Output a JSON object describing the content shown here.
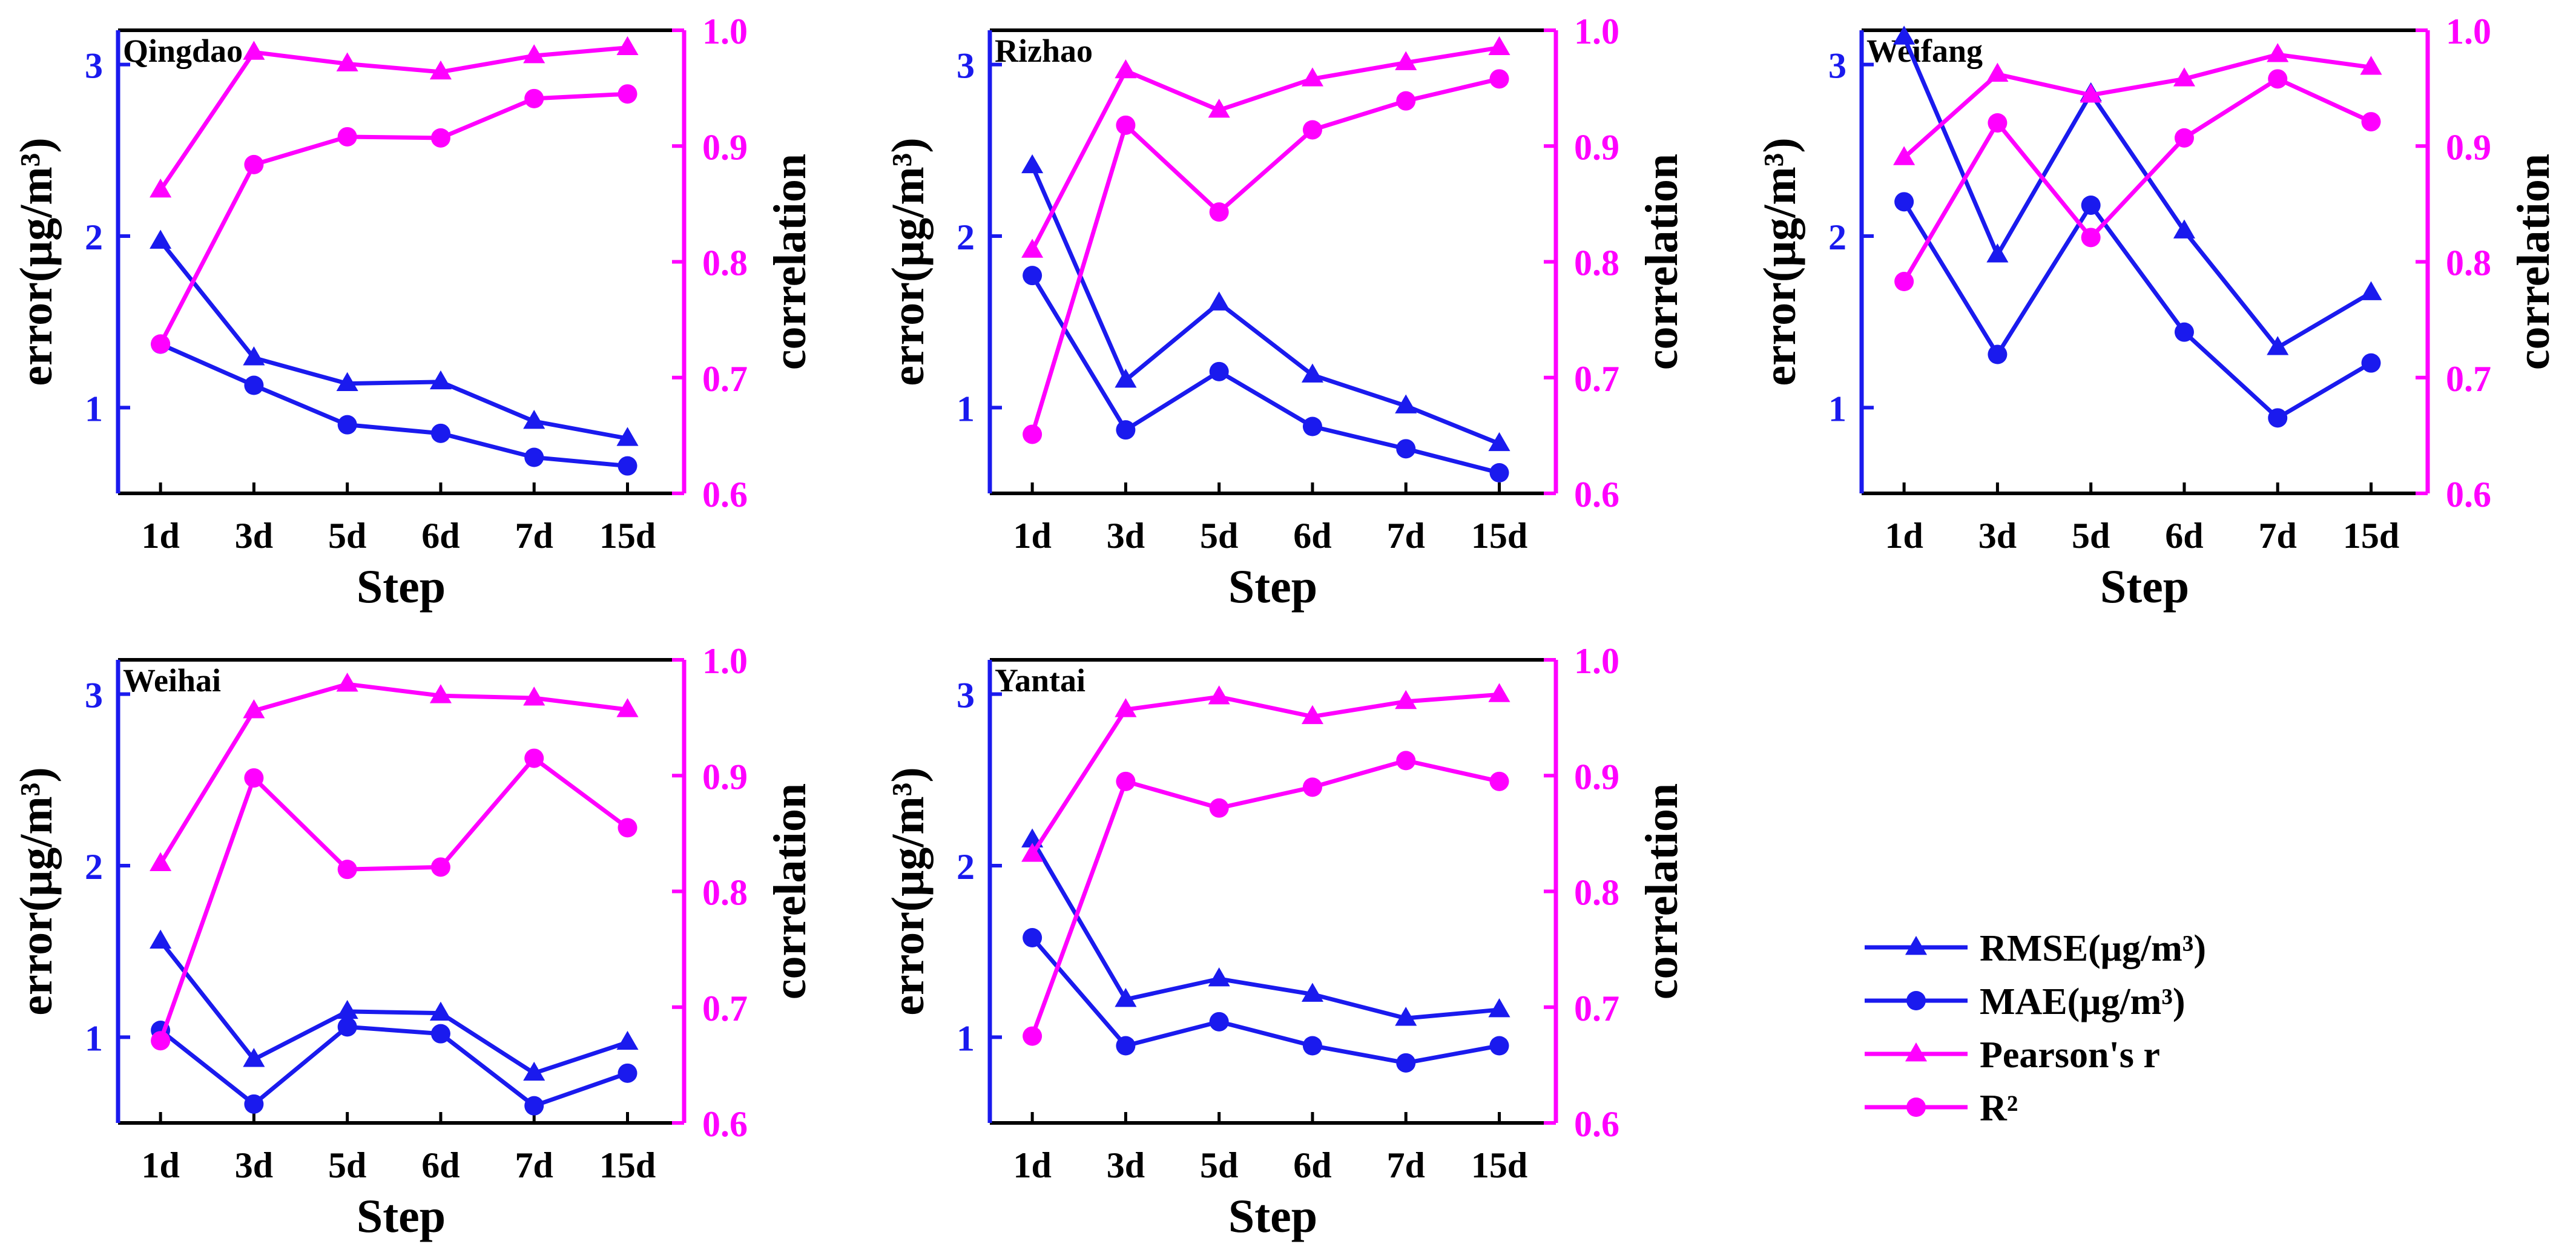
{
  "colors": {
    "error": "#1a1aee",
    "corr": "#ff00ff",
    "frame": "#000000"
  },
  "chart_data": [
    {
      "type": "line",
      "title": "Qingdao",
      "xlabel": "Step",
      "ylabel": "error(μg/m³)",
      "y2label": "correlation",
      "categories": [
        "1d",
        "3d",
        "5d",
        "6d",
        "7d",
        "15d"
      ],
      "ylim": [
        0.5,
        3.2
      ],
      "yticks": [
        1,
        2,
        3
      ],
      "y2lim": [
        0.6,
        1.0
      ],
      "y2ticks": [
        0.6,
        0.7,
        0.8,
        0.9,
        1.0
      ],
      "series": [
        {
          "name": "RMSE(μg/m³)",
          "axis": "left",
          "marker": "triangle",
          "values": [
            1.97,
            1.29,
            1.14,
            1.15,
            0.92,
            0.82
          ]
        },
        {
          "name": "MAE(μg/m³)",
          "axis": "left",
          "marker": "circle",
          "values": [
            1.37,
            1.13,
            0.9,
            0.85,
            0.71,
            0.66
          ]
        },
        {
          "name": "Pearson's r",
          "axis": "right",
          "marker": "triangle",
          "values": [
            0.862,
            0.981,
            0.971,
            0.964,
            0.978,
            0.985
          ]
        },
        {
          "name": "R²",
          "axis": "right",
          "marker": "circle",
          "values": [
            0.729,
            0.884,
            0.908,
            0.907,
            0.941,
            0.945
          ]
        }
      ]
    },
    {
      "type": "line",
      "title": "Rizhao",
      "xlabel": "Step",
      "ylabel": "error(μg/m³)",
      "y2label": "correlation",
      "categories": [
        "1d",
        "3d",
        "5d",
        "6d",
        "7d",
        "15d"
      ],
      "ylim": [
        0.5,
        3.2
      ],
      "yticks": [
        1,
        2,
        3
      ],
      "y2lim": [
        0.6,
        1.0
      ],
      "y2ticks": [
        0.6,
        0.7,
        0.8,
        0.9,
        1.0
      ],
      "series": [
        {
          "name": "RMSE(μg/m³)",
          "axis": "left",
          "marker": "triangle",
          "values": [
            2.41,
            1.16,
            1.61,
            1.19,
            1.01,
            0.79
          ]
        },
        {
          "name": "MAE(μg/m³)",
          "axis": "left",
          "marker": "circle",
          "values": [
            1.77,
            0.87,
            1.21,
            0.89,
            0.76,
            0.62
          ]
        },
        {
          "name": "Pearson's r",
          "axis": "right",
          "marker": "triangle",
          "values": [
            0.81,
            0.965,
            0.931,
            0.958,
            0.972,
            0.985
          ]
        },
        {
          "name": "R²",
          "axis": "right",
          "marker": "circle",
          "values": [
            0.651,
            0.918,
            0.843,
            0.914,
            0.939,
            0.958
          ]
        }
      ]
    },
    {
      "type": "line",
      "title": "Weifang",
      "xlabel": "Step",
      "ylabel": "error(μg/m³)",
      "y2label": "correlation",
      "categories": [
        "1d",
        "3d",
        "5d",
        "6d",
        "7d",
        "15d"
      ],
      "ylim": [
        0.5,
        3.2
      ],
      "yticks": [
        1,
        2,
        3
      ],
      "y2lim": [
        0.6,
        1.0
      ],
      "y2ticks": [
        0.6,
        0.7,
        0.8,
        0.9,
        1.0
      ],
      "series": [
        {
          "name": "RMSE(μg/m³)",
          "axis": "left",
          "marker": "triangle",
          "values": [
            3.16,
            1.89,
            2.83,
            2.03,
            1.35,
            1.67
          ]
        },
        {
          "name": "MAE(μg/m³)",
          "axis": "left",
          "marker": "circle",
          "values": [
            2.2,
            1.31,
            2.18,
            1.44,
            0.94,
            1.26
          ]
        },
        {
          "name": "Pearson's r",
          "axis": "right",
          "marker": "triangle",
          "values": [
            0.89,
            0.962,
            0.944,
            0.958,
            0.979,
            0.968
          ]
        },
        {
          "name": "R²",
          "axis": "right",
          "marker": "circle",
          "values": [
            0.783,
            0.92,
            0.821,
            0.907,
            0.958,
            0.921
          ]
        }
      ]
    },
    {
      "type": "line",
      "title": "Weihai",
      "xlabel": "Step",
      "ylabel": "error(μg/m³)",
      "y2label": "correlation",
      "categories": [
        "1d",
        "3d",
        "5d",
        "6d",
        "7d",
        "15d"
      ],
      "ylim": [
        0.5,
        3.2
      ],
      "yticks": [
        1,
        2,
        3
      ],
      "y2lim": [
        0.6,
        1.0
      ],
      "y2ticks": [
        0.6,
        0.7,
        0.8,
        0.9,
        1.0
      ],
      "series": [
        {
          "name": "RMSE(μg/m³)",
          "axis": "left",
          "marker": "triangle",
          "values": [
            1.56,
            0.87,
            1.15,
            1.14,
            0.79,
            0.97
          ]
        },
        {
          "name": "MAE(μg/m³)",
          "axis": "left",
          "marker": "circle",
          "values": [
            1.04,
            0.61,
            1.06,
            1.02,
            0.6,
            0.79
          ]
        },
        {
          "name": "Pearson's r",
          "axis": "right",
          "marker": "triangle",
          "values": [
            0.824,
            0.956,
            0.979,
            0.969,
            0.967,
            0.957
          ]
        },
        {
          "name": "R²",
          "axis": "right",
          "marker": "circle",
          "values": [
            0.671,
            0.898,
            0.819,
            0.821,
            0.915,
            0.855
          ]
        }
      ]
    },
    {
      "type": "line",
      "title": "Yantai",
      "xlabel": "Step",
      "ylabel": "error(μg/m³)",
      "y2label": "correlation",
      "categories": [
        "1d",
        "3d",
        "5d",
        "6d",
        "7d",
        "15d"
      ],
      "ylim": [
        0.5,
        3.2
      ],
      "yticks": [
        1,
        2,
        3
      ],
      "y2lim": [
        0.6,
        1.0
      ],
      "y2ticks": [
        0.6,
        0.7,
        0.8,
        0.9,
        1.0
      ],
      "series": [
        {
          "name": "RMSE(μg/m³)",
          "axis": "left",
          "marker": "triangle",
          "values": [
            2.15,
            1.22,
            1.34,
            1.25,
            1.11,
            1.16
          ]
        },
        {
          "name": "MAE(μg/m³)",
          "axis": "left",
          "marker": "circle",
          "values": [
            1.58,
            0.95,
            1.09,
            0.95,
            0.85,
            0.95
          ]
        },
        {
          "name": "Pearson's r",
          "axis": "right",
          "marker": "triangle",
          "values": [
            0.832,
            0.957,
            0.968,
            0.951,
            0.964,
            0.97
          ]
        },
        {
          "name": "R²",
          "axis": "right",
          "marker": "circle",
          "values": [
            0.675,
            0.895,
            0.872,
            0.89,
            0.913,
            0.895
          ]
        }
      ]
    }
  ],
  "legend": {
    "position": "lower-right",
    "items": [
      {
        "label": "RMSE(μg/m³)",
        "marker": "triangle",
        "color": "#1a1aee"
      },
      {
        "label": "MAE(μg/m³)",
        "marker": "circle",
        "color": "#1a1aee"
      },
      {
        "label": "Pearson's r",
        "marker": "triangle",
        "color": "#ff00ff"
      },
      {
        "label": "R²",
        "marker": "circle",
        "color": "#ff00ff"
      }
    ]
  }
}
